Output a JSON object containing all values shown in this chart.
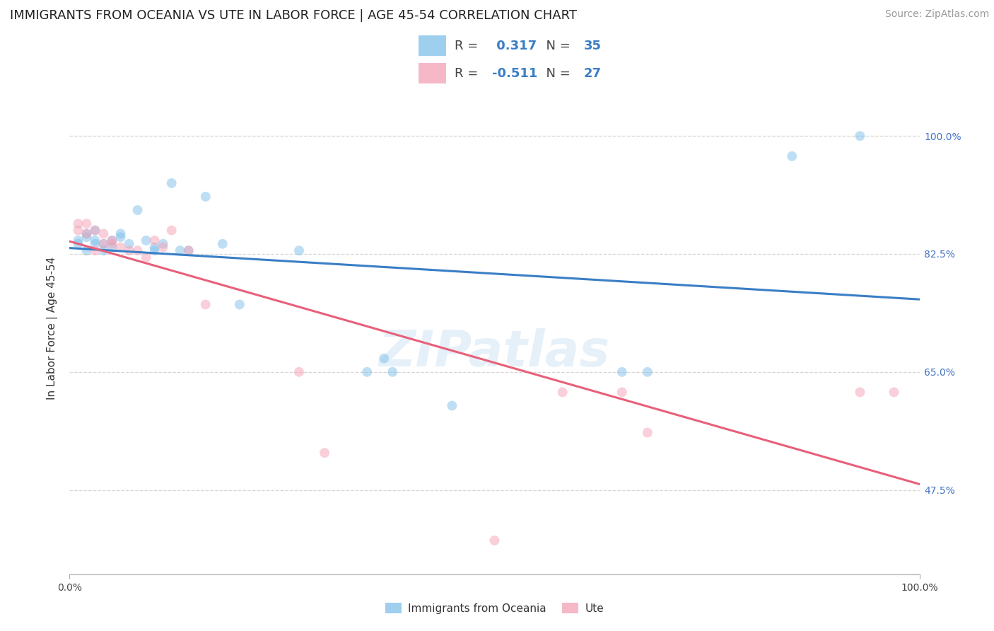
{
  "title": "IMMIGRANTS FROM OCEANIA VS UTE IN LABOR FORCE | AGE 45-54 CORRELATION CHART",
  "source": "Source: ZipAtlas.com",
  "ylabel": "In Labor Force | Age 45-54",
  "y_ticks": [
    0.475,
    0.65,
    0.825,
    1.0
  ],
  "y_tick_labels": [
    "47.5%",
    "65.0%",
    "82.5%",
    "100.0%"
  ],
  "xlim": [
    0.0,
    1.0
  ],
  "ylim": [
    0.35,
    1.08
  ],
  "blue_color": "#7fbfea",
  "pink_color": "#f4a0b5",
  "blue_line_color": "#3a7ec6",
  "pink_line_color": "#e8607a",
  "r_blue": 0.317,
  "n_blue": 35,
  "r_pink": -0.511,
  "n_pink": 27,
  "legend_label_blue": "Immigrants from Oceania",
  "legend_label_pink": "Ute",
  "blue_scatter_x": [
    0.01,
    0.01,
    0.02,
    0.02,
    0.02,
    0.03,
    0.03,
    0.03,
    0.04,
    0.04,
    0.05,
    0.05,
    0.06,
    0.06,
    0.07,
    0.08,
    0.09,
    0.1,
    0.1,
    0.11,
    0.12,
    0.13,
    0.14,
    0.16,
    0.18,
    0.2,
    0.27,
    0.35,
    0.37,
    0.38,
    0.45,
    0.65,
    0.68,
    0.85,
    0.93
  ],
  "blue_scatter_y": [
    0.84,
    0.845,
    0.85,
    0.855,
    0.83,
    0.84,
    0.845,
    0.86,
    0.84,
    0.83,
    0.845,
    0.835,
    0.855,
    0.85,
    0.84,
    0.89,
    0.845,
    0.835,
    0.83,
    0.84,
    0.93,
    0.83,
    0.83,
    0.91,
    0.84,
    0.75,
    0.83,
    0.65,
    0.67,
    0.65,
    0.6,
    0.65,
    0.65,
    0.97,
    1.0
  ],
  "pink_scatter_x": [
    0.01,
    0.01,
    0.02,
    0.02,
    0.03,
    0.03,
    0.04,
    0.04,
    0.05,
    0.05,
    0.06,
    0.07,
    0.08,
    0.09,
    0.1,
    0.11,
    0.12,
    0.14,
    0.16,
    0.27,
    0.3,
    0.58,
    0.65,
    0.68,
    0.93,
    0.97,
    0.5
  ],
  "pink_scatter_y": [
    0.87,
    0.86,
    0.87,
    0.855,
    0.86,
    0.83,
    0.855,
    0.84,
    0.84,
    0.845,
    0.835,
    0.83,
    0.83,
    0.82,
    0.845,
    0.835,
    0.86,
    0.83,
    0.75,
    0.65,
    0.53,
    0.62,
    0.62,
    0.56,
    0.62,
    0.62,
    0.4
  ],
  "watermark_text": "ZIPatlas",
  "dot_size": 100,
  "dot_alpha": 0.5,
  "line_width": 2.2,
  "title_fontsize": 13,
  "axis_label_fontsize": 11,
  "tick_fontsize": 10,
  "legend_fontsize": 13,
  "source_fontsize": 10,
  "background_color": "#ffffff",
  "grid_color": "#cccccc",
  "grid_alpha": 0.8
}
